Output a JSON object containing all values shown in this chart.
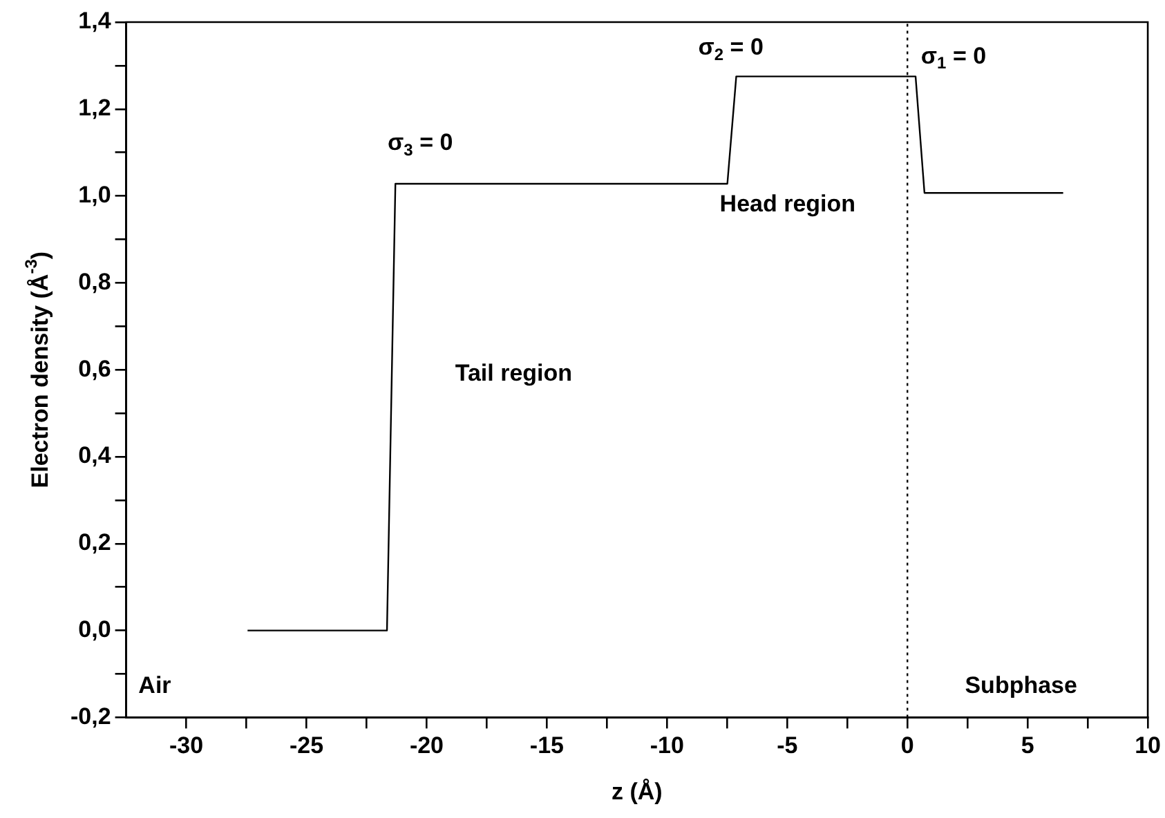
{
  "chart_data": {
    "type": "line",
    "xlabel": "z (Å)",
    "ylabel": "Electron density (Å$^{-3}$)",
    "series": [
      {
        "color": "#000000",
        "x": [
          -27.45,
          -21.65,
          -21.3,
          -7.49,
          -7.12,
          0.34,
          0.71,
          6.48
        ],
        "values": [
          0,
          0,
          1.028,
          1.028,
          1.275,
          1.275,
          1.007,
          1.007
        ]
      }
    ],
    "marker": "none",
    "line_style": "solid",
    "legend": false,
    "xlim": [
      -32.5,
      10
    ],
    "xticks": [
      -30,
      {
        "value": -27.5,
        "label": null
      },
      -25,
      {
        "value": -22.5,
        "label": null
      },
      -20,
      {
        "value": -17.5,
        "label": null
      },
      -15,
      {
        "value": -12.5,
        "label": null
      },
      -10,
      {
        "value": -7.5,
        "label": null
      },
      -5,
      {
        "value": -2.5,
        "label": null
      },
      0,
      {
        "value": 2.5,
        "label": null
      },
      5,
      {
        "value": 7.5,
        "label": null
      },
      10
    ],
    "ylim": [
      -0.2,
      1.4
    ],
    "yticks": [
      {
        "value": -0.2,
        "label": "-0,2"
      },
      {
        "value": -0.1,
        "label": null
      },
      {
        "value": 0,
        "label": "0,0"
      },
      {
        "value": 0.1,
        "label": null
      },
      {
        "value": 0.2,
        "label": "0,2"
      },
      {
        "value": 0.3,
        "label": null
      },
      {
        "value": 0.4,
        "label": "0,4"
      },
      {
        "value": 0.5,
        "label": null
      },
      {
        "value": 0.6,
        "label": "0,6"
      },
      {
        "value": 0.7,
        "label": null
      },
      {
        "value": 0.8,
        "label": "0,8"
      },
      {
        "value": 0.9,
        "label": null
      },
      {
        "value": 1.0,
        "label": "1,0"
      },
      {
        "value": 1.1,
        "label": null
      },
      {
        "value": 1.2,
        "label": "1,2"
      },
      {
        "value": 1.3,
        "label": null
      },
      {
        "value": 1.4,
        "label": "1,4"
      }
    ],
    "ref_lines": [
      {
        "axis": "x",
        "value": 0,
        "line_style": "dotted",
        "color": "#000000"
      }
    ],
    "annotations": [
      "σ$_{3}$ = 0",
      "σ$_{2}$ = 0",
      "σ$_{1}$ = 0",
      "Head region",
      "Tail region",
      "Air",
      "Subphase"
    ]
  }
}
